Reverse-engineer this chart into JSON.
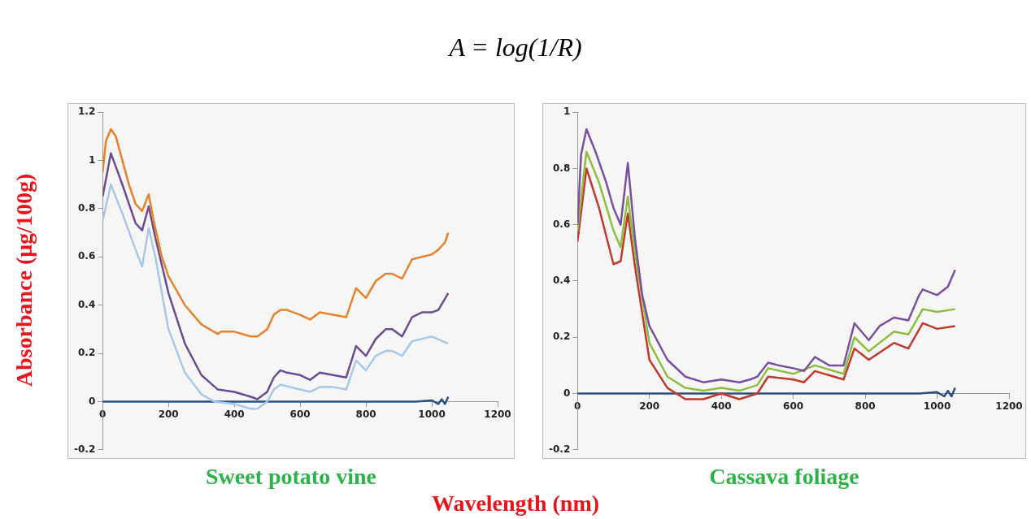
{
  "chart_data": [
    {
      "type": "line",
      "title": "Sweet potato vine",
      "xlabel": "Wavelength (nm)",
      "ylabel": "Absorbance (μg/100g)",
      "annotations": [
        "A = log(1/R)"
      ],
      "xlim": [
        0,
        1200
      ],
      "xticks": [
        0,
        200,
        400,
        600,
        800,
        1000,
        1200
      ],
      "ylim": [
        -0.2,
        1.2
      ],
      "yticks": [
        -0.2,
        0,
        0.2,
        0.4,
        0.6,
        0.8,
        1,
        1.2
      ],
      "grid": false,
      "legend": false,
      "series": [
        {
          "color": "#e8822a",
          "x": [
            0,
            10,
            25,
            40,
            60,
            80,
            100,
            120,
            140,
            155,
            180,
            200,
            250,
            300,
            350,
            360,
            400,
            450,
            470,
            500,
            520,
            540,
            560,
            600,
            630,
            660,
            700,
            740,
            770,
            800,
            830,
            860,
            880,
            910,
            940,
            970,
            1000,
            1020,
            1040,
            1050
          ],
          "values": [
            0.95,
            1.08,
            1.13,
            1.1,
            1.0,
            0.9,
            0.82,
            0.79,
            0.86,
            0.75,
            0.6,
            0.52,
            0.4,
            0.32,
            0.28,
            0.29,
            0.29,
            0.27,
            0.27,
            0.3,
            0.36,
            0.38,
            0.38,
            0.36,
            0.34,
            0.37,
            0.36,
            0.35,
            0.47,
            0.43,
            0.5,
            0.53,
            0.53,
            0.51,
            0.59,
            0.6,
            0.61,
            0.63,
            0.66,
            0.7
          ]
        },
        {
          "color": "#6a4c93",
          "x": [
            0,
            25,
            60,
            100,
            120,
            140,
            160,
            200,
            250,
            300,
            350,
            400,
            450,
            470,
            500,
            520,
            540,
            560,
            600,
            630,
            660,
            700,
            740,
            770,
            800,
            830,
            860,
            880,
            910,
            940,
            970,
            1000,
            1020,
            1050
          ],
          "values": [
            0.85,
            1.03,
            0.9,
            0.74,
            0.71,
            0.81,
            0.68,
            0.45,
            0.24,
            0.11,
            0.05,
            0.04,
            0.02,
            0.01,
            0.04,
            0.1,
            0.13,
            0.12,
            0.11,
            0.09,
            0.12,
            0.11,
            0.1,
            0.23,
            0.19,
            0.26,
            0.3,
            0.3,
            0.27,
            0.35,
            0.37,
            0.37,
            0.38,
            0.45
          ]
        },
        {
          "color": "#a8c8e8",
          "x": [
            0,
            25,
            60,
            100,
            120,
            140,
            160,
            200,
            250,
            300,
            340,
            400,
            450,
            470,
            500,
            520,
            540,
            600,
            630,
            660,
            700,
            740,
            770,
            800,
            830,
            860,
            880,
            910,
            940,
            970,
            1000,
            1050
          ],
          "values": [
            0.75,
            0.9,
            0.78,
            0.63,
            0.56,
            0.72,
            0.6,
            0.3,
            0.12,
            0.03,
            0.0,
            -0.01,
            -0.03,
            -0.03,
            0.0,
            0.05,
            0.07,
            0.05,
            0.04,
            0.06,
            0.06,
            0.05,
            0.17,
            0.13,
            0.19,
            0.21,
            0.21,
            0.19,
            0.25,
            0.26,
            0.27,
            0.24
          ]
        },
        {
          "color": "#2f4f7f",
          "x": [
            0,
            400,
            800,
            950,
            1000,
            1020,
            1030,
            1040,
            1050
          ],
          "values": [
            0,
            0,
            0,
            0,
            0.005,
            -0.01,
            0.01,
            -0.01,
            0.02
          ]
        }
      ]
    },
    {
      "type": "line",
      "title": "Cassava foliage",
      "xlim": [
        0,
        1200
      ],
      "xticks": [
        0,
        200,
        400,
        600,
        800,
        1000,
        1200
      ],
      "ylim": [
        -0.2,
        1
      ],
      "yticks": [
        -0.2,
        0,
        0.2,
        0.4,
        0.6,
        0.8,
        1
      ],
      "grid": false,
      "legend": false,
      "series": [
        {
          "color": "#7b4fa0",
          "x": [
            0,
            10,
            25,
            50,
            80,
            100,
            120,
            140,
            160,
            180,
            200,
            250,
            300,
            350,
            400,
            450,
            480,
            500,
            530,
            560,
            600,
            630,
            660,
            700,
            740,
            770,
            810,
            840,
            880,
            920,
            950,
            960,
            1000,
            1030,
            1050
          ],
          "values": [
            0.6,
            0.85,
            0.94,
            0.86,
            0.75,
            0.66,
            0.6,
            0.82,
            0.55,
            0.35,
            0.24,
            0.12,
            0.06,
            0.04,
            0.05,
            0.04,
            0.05,
            0.06,
            0.11,
            0.1,
            0.09,
            0.08,
            0.13,
            0.1,
            0.1,
            0.25,
            0.19,
            0.24,
            0.27,
            0.26,
            0.35,
            0.37,
            0.35,
            0.38,
            0.44
          ]
        },
        {
          "color": "#8cbf3f",
          "x": [
            0,
            25,
            60,
            100,
            120,
            140,
            160,
            200,
            250,
            300,
            350,
            400,
            450,
            500,
            530,
            600,
            660,
            740,
            770,
            810,
            880,
            920,
            960,
            1000,
            1050
          ],
          "values": [
            0.58,
            0.86,
            0.75,
            0.58,
            0.52,
            0.7,
            0.5,
            0.18,
            0.06,
            0.02,
            0.01,
            0.02,
            0.01,
            0.03,
            0.09,
            0.07,
            0.1,
            0.07,
            0.2,
            0.15,
            0.22,
            0.21,
            0.3,
            0.29,
            0.3
          ]
        },
        {
          "color": "#c0392b",
          "x": [
            0,
            25,
            60,
            100,
            120,
            140,
            160,
            200,
            250,
            300,
            350,
            400,
            450,
            500,
            530,
            600,
            630,
            660,
            740,
            770,
            810,
            880,
            920,
            960,
            1000,
            1050
          ],
          "values": [
            0.54,
            0.8,
            0.66,
            0.46,
            0.47,
            0.64,
            0.45,
            0.12,
            0.02,
            -0.02,
            -0.02,
            0.0,
            -0.02,
            0.0,
            0.06,
            0.05,
            0.04,
            0.08,
            0.05,
            0.16,
            0.12,
            0.18,
            0.16,
            0.25,
            0.23,
            0.24
          ]
        },
        {
          "color": "#2f4f7f",
          "x": [
            0,
            400,
            800,
            950,
            1000,
            1020,
            1030,
            1040,
            1050
          ],
          "values": [
            0,
            0,
            0,
            0,
            0.005,
            -0.01,
            0.01,
            -0.01,
            0.02
          ]
        }
      ]
    }
  ]
}
